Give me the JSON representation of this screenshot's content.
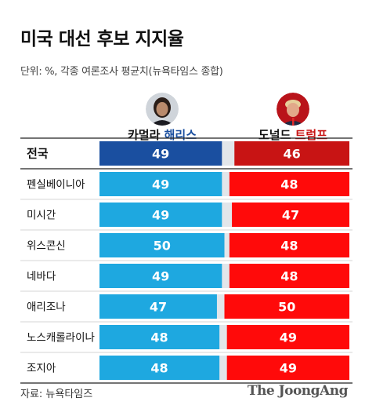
{
  "title": "미국 대선 후보 지지율",
  "subtitle": "단위: %, 각종 여론조사 평균치(뉴욕타임스 종합)",
  "candidates": {
    "harris": {
      "first": "카멀라",
      "last": "해리스",
      "color": "#1a4fa0"
    },
    "trump": {
      "first": "도널드",
      "last": "트럼프",
      "color": "#c81414"
    }
  },
  "chart_data": {
    "type": "bar",
    "categories": [
      "전국",
      "펜실베이니아",
      "미시간",
      "위스콘신",
      "네바다",
      "애리조나",
      "노스캐롤라이나",
      "조지아"
    ],
    "series": [
      {
        "name": "카멀라 해리스",
        "values": [
          49,
          49,
          49,
          50,
          49,
          47,
          48,
          48
        ],
        "color": "#1ea8e0",
        "highlight_color": "#1a4fa0"
      },
      {
        "name": "도널드 트럼프",
        "values": [
          46,
          48,
          47,
          48,
          48,
          50,
          49,
          49
        ],
        "color": "#ff0a0a",
        "highlight_color": "#c81414"
      }
    ],
    "highlight_category": "전국",
    "background_color": "#e2e6ea"
  },
  "source": "자료: 뉴욕타임즈",
  "logo": "The JoongAng"
}
